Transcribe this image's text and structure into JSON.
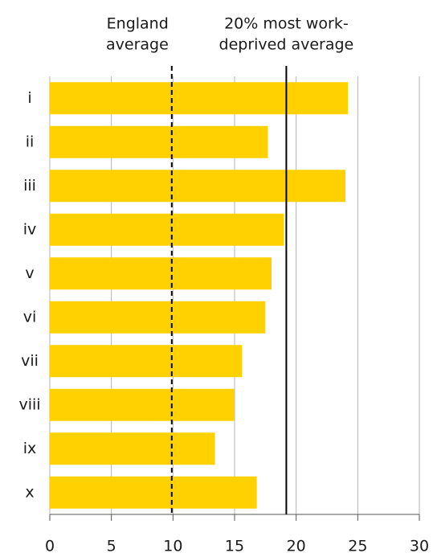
{
  "chart_data": {
    "type": "barh",
    "categories": [
      "i",
      "ii",
      "iii",
      "iv",
      "v",
      "vi",
      "vii",
      "viii",
      "ix",
      "x"
    ],
    "values": [
      24.2,
      17.7,
      24.0,
      19.0,
      18.0,
      17.5,
      15.6,
      15.0,
      13.4,
      16.8
    ],
    "color": "#ffd100",
    "xlim": [
      0,
      30
    ],
    "xticks": [
      0,
      5,
      10,
      15,
      20,
      25,
      30
    ],
    "grid": true,
    "reference_lines": [
      {
        "label": [
          "England",
          "average"
        ],
        "value": 9.9,
        "style": "dashed"
      },
      {
        "label": [
          "20% most work-",
          "deprived average"
        ],
        "value": 19.2,
        "style": "solid"
      }
    ]
  }
}
